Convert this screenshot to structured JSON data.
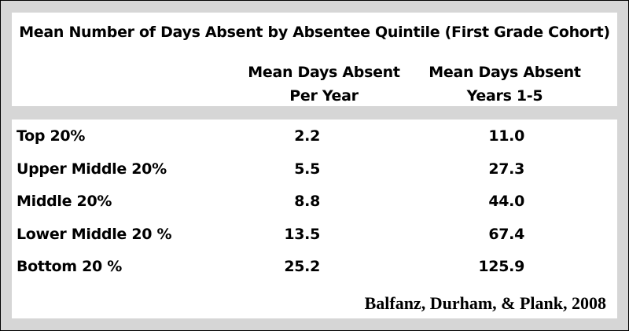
{
  "chart_data": {
    "type": "table",
    "title": "Mean Number of Days Absent by Absentee Quintile (First Grade Cohort)",
    "columns": [
      {
        "line1": "Mean Days Absent",
        "line2": "Per Year"
      },
      {
        "line1": "Mean Days Absent",
        "line2": "Years 1-5"
      }
    ],
    "rows": [
      {
        "label": "Top 20%",
        "per_year": "2.2",
        "years_1_5": "11.0"
      },
      {
        "label": "Upper Middle 20%",
        "per_year": "5.5",
        "years_1_5": "27.3"
      },
      {
        "label": "Middle 20%",
        "per_year": "8.8",
        "years_1_5": "44.0"
      },
      {
        "label": "Lower Middle 20 %",
        "per_year": "13.5",
        "years_1_5": "67.4"
      },
      {
        "label": "Bottom 20 %",
        "per_year": "25.2",
        "years_1_5": "125.9"
      }
    ],
    "source": "Balfanz, Durham, & Plank, 2008"
  }
}
